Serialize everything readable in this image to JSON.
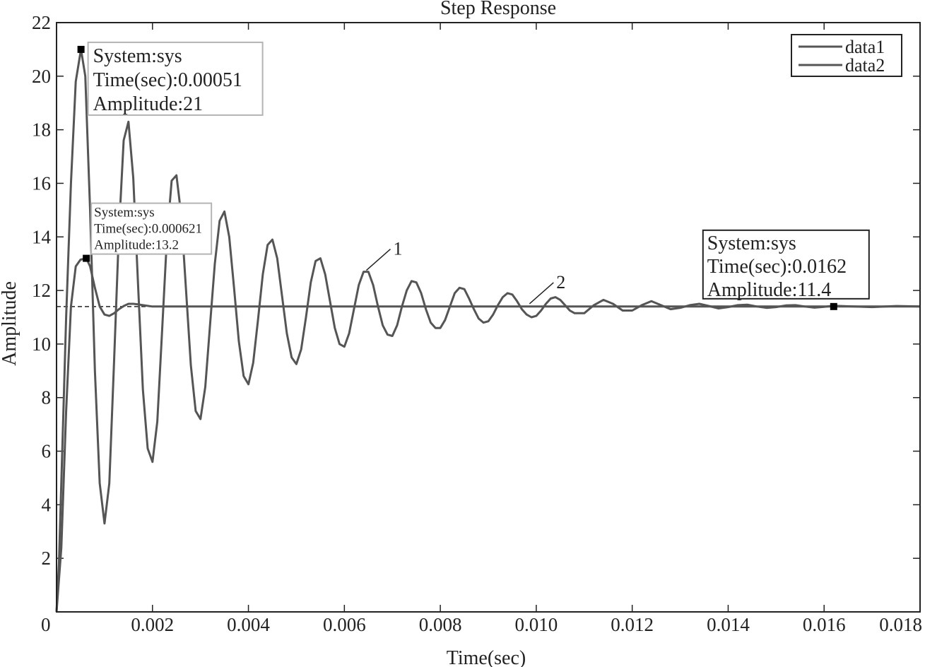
{
  "chart_data": {
    "type": "line",
    "title": "Step Response",
    "xlabel": "Time(sec)",
    "ylabel": "Amplitude",
    "xlim": [
      0,
      0.018
    ],
    "ylim": [
      0,
      22
    ],
    "xticks": [
      0,
      0.002,
      0.004,
      0.006,
      0.008,
      0.01,
      0.012,
      0.014,
      0.016,
      0.018
    ],
    "xtick_labels": [
      "0",
      "0.002",
      "0.004",
      "0.006",
      "0.008",
      "0.010",
      "0.012",
      "0.014",
      "0.016",
      "0.018"
    ],
    "yticks": [
      0,
      2,
      4,
      6,
      8,
      10,
      12,
      14,
      16,
      18,
      20,
      22
    ],
    "ytick_labels": [
      "0",
      "2",
      "4",
      "6",
      "8",
      "10",
      "12",
      "14",
      "16",
      "18",
      "20",
      "22"
    ],
    "grid": false,
    "legend": {
      "position": "top-right",
      "entries": [
        "data1",
        "data2"
      ]
    },
    "steady_state": 11.4,
    "series": [
      {
        "name": "data1",
        "points": [
          [
            0,
            0
          ],
          [
            0.0001,
            2.4
          ],
          [
            0.0002,
            7.5
          ],
          [
            0.0003,
            11.4
          ],
          [
            0.0004,
            12.9
          ],
          [
            0.0005,
            13.15
          ],
          [
            0.000621,
            13.2
          ],
          [
            0.0007,
            12.9
          ],
          [
            0.0008,
            12.1
          ],
          [
            0.0009,
            11.4
          ],
          [
            0.001,
            11.1
          ],
          [
            0.0011,
            11.05
          ],
          [
            0.0012,
            11.15
          ],
          [
            0.0013,
            11.3
          ],
          [
            0.0014,
            11.42
          ],
          [
            0.0015,
            11.5
          ],
          [
            0.0016,
            11.5
          ],
          [
            0.0017,
            11.48
          ],
          [
            0.0018,
            11.45
          ],
          [
            0.002,
            11.4
          ],
          [
            0.003,
            11.4
          ],
          [
            0.005,
            11.4
          ],
          [
            0.008,
            11.4
          ],
          [
            0.012,
            11.4
          ],
          [
            0.016,
            11.4
          ],
          [
            0.018,
            11.4
          ]
        ]
      },
      {
        "name": "data2",
        "points": [
          [
            0,
            0
          ],
          [
            5e-05,
            1.8
          ],
          [
            0.00012,
            6
          ],
          [
            0.0002,
            11
          ],
          [
            0.0003,
            16
          ],
          [
            0.0004,
            19.8
          ],
          [
            0.00051,
            21
          ],
          [
            0.0006,
            20
          ],
          [
            0.0007,
            15
          ],
          [
            0.0008,
            9
          ],
          [
            0.0009,
            4.8
          ],
          [
            0.001,
            3.3
          ],
          [
            0.0011,
            4.8
          ],
          [
            0.0012,
            9.4
          ],
          [
            0.0013,
            14.2
          ],
          [
            0.0014,
            17.6
          ],
          [
            0.0015,
            18.3
          ],
          [
            0.0016,
            16.2
          ],
          [
            0.0017,
            12.2
          ],
          [
            0.0018,
            8.3
          ],
          [
            0.0019,
            6.1
          ],
          [
            0.002,
            5.6
          ],
          [
            0.0021,
            7.1
          ],
          [
            0.0022,
            10.5
          ],
          [
            0.0023,
            13.9
          ],
          [
            0.0024,
            16.1
          ],
          [
            0.0025,
            16.3
          ],
          [
            0.0026,
            14.8
          ],
          [
            0.0027,
            12
          ],
          [
            0.0028,
            9.2
          ],
          [
            0.0029,
            7.5
          ],
          [
            0.003,
            7.2
          ],
          [
            0.0031,
            8.4
          ],
          [
            0.0032,
            10.7
          ],
          [
            0.0033,
            13
          ],
          [
            0.0034,
            14.6
          ],
          [
            0.0035,
            14.95
          ],
          [
            0.0036,
            14
          ],
          [
            0.0037,
            12.1
          ],
          [
            0.0038,
            10.1
          ],
          [
            0.0039,
            8.8
          ],
          [
            0.004,
            8.5
          ],
          [
            0.0041,
            9.3
          ],
          [
            0.0042,
            10.9
          ],
          [
            0.0043,
            12.6
          ],
          [
            0.0044,
            13.7
          ],
          [
            0.0045,
            13.9
          ],
          [
            0.0046,
            13.2
          ],
          [
            0.0047,
            11.8
          ],
          [
            0.0048,
            10.4
          ],
          [
            0.0049,
            9.5
          ],
          [
            0.005,
            9.25
          ],
          [
            0.0051,
            9.8
          ],
          [
            0.0052,
            11
          ],
          [
            0.0053,
            12.3
          ],
          [
            0.0054,
            13.1
          ],
          [
            0.0055,
            13.2
          ],
          [
            0.0056,
            12.6
          ],
          [
            0.0057,
            11.6
          ],
          [
            0.0058,
            10.6
          ],
          [
            0.0059,
            10
          ],
          [
            0.006,
            9.9
          ],
          [
            0.0061,
            10.4
          ],
          [
            0.0062,
            11.3
          ],
          [
            0.0063,
            12.2
          ],
          [
            0.0064,
            12.7
          ],
          [
            0.0065,
            12.7
          ],
          [
            0.0066,
            12.2
          ],
          [
            0.0067,
            11.4
          ],
          [
            0.0068,
            10.7
          ],
          [
            0.0069,
            10.35
          ],
          [
            0.007,
            10.3
          ],
          [
            0.0071,
            10.7
          ],
          [
            0.0072,
            11.4
          ],
          [
            0.0073,
            12
          ],
          [
            0.0074,
            12.35
          ],
          [
            0.0075,
            12.3
          ],
          [
            0.0076,
            11.9
          ],
          [
            0.0077,
            11.3
          ],
          [
            0.0078,
            10.8
          ],
          [
            0.0079,
            10.6
          ],
          [
            0.008,
            10.6
          ],
          [
            0.0081,
            10.9
          ],
          [
            0.0082,
            11.4
          ],
          [
            0.0083,
            11.9
          ],
          [
            0.0084,
            12.1
          ],
          [
            0.0085,
            12.05
          ],
          [
            0.0086,
            11.7
          ],
          [
            0.0087,
            11.3
          ],
          [
            0.0088,
            10.95
          ],
          [
            0.0089,
            10.8
          ],
          [
            0.009,
            10.85
          ],
          [
            0.0091,
            11.1
          ],
          [
            0.0092,
            11.45
          ],
          [
            0.0093,
            11.75
          ],
          [
            0.0094,
            11.9
          ],
          [
            0.0095,
            11.85
          ],
          [
            0.0096,
            11.6
          ],
          [
            0.0097,
            11.3
          ],
          [
            0.0098,
            11.1
          ],
          [
            0.0099,
            11.0
          ],
          [
            0.01,
            11.05
          ],
          [
            0.0101,
            11.25
          ],
          [
            0.0102,
            11.5
          ],
          [
            0.0103,
            11.7
          ],
          [
            0.0104,
            11.75
          ],
          [
            0.0105,
            11.65
          ],
          [
            0.0106,
            11.45
          ],
          [
            0.0107,
            11.25
          ],
          [
            0.0108,
            11.15
          ],
          [
            0.011,
            11.15
          ],
          [
            0.0112,
            11.45
          ],
          [
            0.0114,
            11.65
          ],
          [
            0.0116,
            11.5
          ],
          [
            0.0118,
            11.25
          ],
          [
            0.012,
            11.25
          ],
          [
            0.0122,
            11.45
          ],
          [
            0.0124,
            11.6
          ],
          [
            0.0126,
            11.45
          ],
          [
            0.0128,
            11.3
          ],
          [
            0.013,
            11.35
          ],
          [
            0.0132,
            11.45
          ],
          [
            0.0134,
            11.5
          ],
          [
            0.0136,
            11.42
          ],
          [
            0.0138,
            11.33
          ],
          [
            0.014,
            11.38
          ],
          [
            0.0142,
            11.45
          ],
          [
            0.0144,
            11.47
          ],
          [
            0.0146,
            11.4
          ],
          [
            0.0148,
            11.35
          ],
          [
            0.015,
            11.38
          ],
          [
            0.0152,
            11.44
          ],
          [
            0.0154,
            11.45
          ],
          [
            0.0156,
            11.4
          ],
          [
            0.0158,
            11.36
          ],
          [
            0.016,
            11.39
          ],
          [
            0.0162,
            11.43
          ],
          [
            0.0165,
            11.41
          ],
          [
            0.017,
            11.38
          ],
          [
            0.0175,
            11.42
          ],
          [
            0.018,
            11.4
          ]
        ]
      }
    ],
    "datatips": [
      {
        "lines": [
          "System:sys",
          "Time(sec):0.00051",
          "Amplitude:21"
        ],
        "x": 0.00051,
        "y": 21,
        "size": "big",
        "border_color": "#b4b4b4"
      },
      {
        "lines": [
          "System:sys",
          "Time(sec):0.000621",
          "Amplitude:13.2"
        ],
        "x": 0.000621,
        "y": 13.2,
        "size": "small",
        "border_color": "#b4b4b4"
      },
      {
        "lines": [
          "System:sys",
          "Time(sec):0.0162",
          "Amplitude:11.4"
        ],
        "x": 0.0162,
        "y": 11.4,
        "size": "big",
        "border_color": "#222222"
      }
    ],
    "curve_labels": [
      {
        "text": "1",
        "x": 0.0064,
        "y": 12.7
      },
      {
        "text": "2",
        "x": 0.0098,
        "y": 11.45
      }
    ],
    "colors": {
      "line": "#555555",
      "axis": "#222222",
      "text": "#222222",
      "background": "#ffffff",
      "marker": "#000000"
    }
  }
}
